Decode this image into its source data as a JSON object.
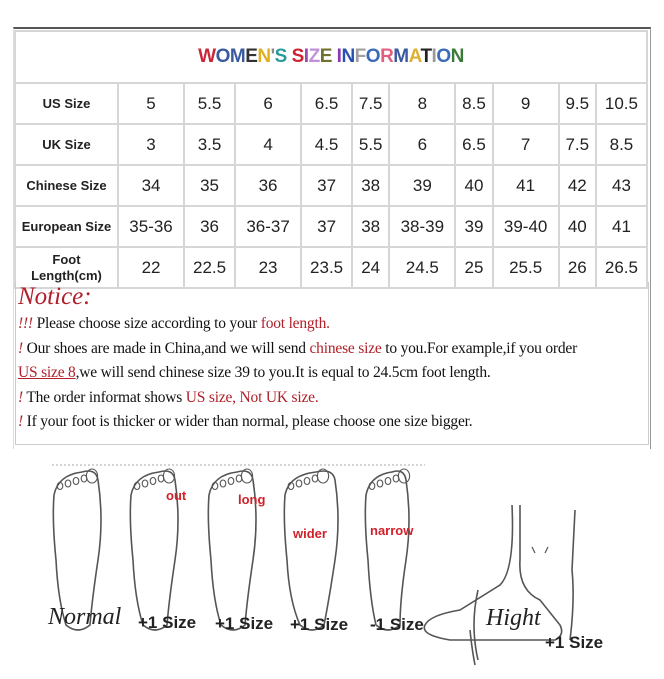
{
  "title": {
    "text": "WOMEN'S SIZE INFORMATION",
    "letter_colors": [
      "#c8283a",
      "#3a5aa0",
      "#3a5aa0",
      "#333",
      "#e0b020",
      "#888",
      "#2a9a9a",
      "",
      "#d02030",
      "#9a4ab0",
      "#c090d8",
      "#707030",
      "",
      "#8a3ab0",
      "#2a50b0",
      "#a0a0a0",
      "#3a6ab8",
      "#e06080",
      "#3a5aa0",
      "#e0b030",
      "#222",
      "#9a9a9a",
      "#3a6ab8",
      "#3a7a3a"
    ]
  },
  "table": {
    "rows": [
      {
        "label": "US Size",
        "values": [
          "5",
          "5.5",
          "6",
          "6.5",
          "7.5",
          "8",
          "8.5",
          "9",
          "9.5",
          "10.5"
        ]
      },
      {
        "label": "UK Size",
        "values": [
          "3",
          "3.5",
          "4",
          "4.5",
          "5.5",
          "6",
          "6.5",
          "7",
          "7.5",
          "8.5"
        ]
      },
      {
        "label": "Chinese Size",
        "values": [
          "34",
          "35",
          "36",
          "37",
          "38",
          "39",
          "40",
          "41",
          "42",
          "43"
        ]
      },
      {
        "label": "European Size",
        "values": [
          "35-36",
          "36",
          "36-37",
          "37",
          "38",
          "38-39",
          "39",
          "39-40",
          "40",
          "41"
        ]
      },
      {
        "label": "Foot Length(cm)",
        "label_line1": "Foot",
        "label_line2": "Length(cm)",
        "values": [
          "22",
          "22.5",
          "23",
          "23.5",
          "24",
          "24.5",
          "25",
          "25.5",
          "26",
          "26.5"
        ]
      }
    ]
  },
  "notice": {
    "heading": "Notice:",
    "line1": {
      "bang": "!!!",
      "text": " Please choose size according to your ",
      "highlight": "foot length."
    },
    "line2": {
      "bang": "!",
      "text": " Our shoes are made in China,and we will send ",
      "highlight": "chinese size",
      "text2": " to you.For example,if you order"
    },
    "line3": {
      "highlight": "US size 8",
      "text": ",we will send chinese size 39 to you.It is equal to 24.5cm foot length."
    },
    "line4": {
      "bang": "!",
      "text": " The order informat shows ",
      "highlight": "US size, Not UK size."
    },
    "line5": {
      "bang": "!",
      "text": " If your foot is thicker or wider than normal, please choose one size bigger."
    }
  },
  "illustration": {
    "tags": {
      "out": "out",
      "long": "long",
      "wider": "wider",
      "narrow": "narrow"
    },
    "labels": {
      "normal": "Normal",
      "out": "+1 Size",
      "long": "+1 Size",
      "wider": "+1 Size",
      "narrow": "-1 Size",
      "hight": "Hight",
      "hight_size": "+1 Size"
    },
    "highlight_color": "#d0202a"
  }
}
